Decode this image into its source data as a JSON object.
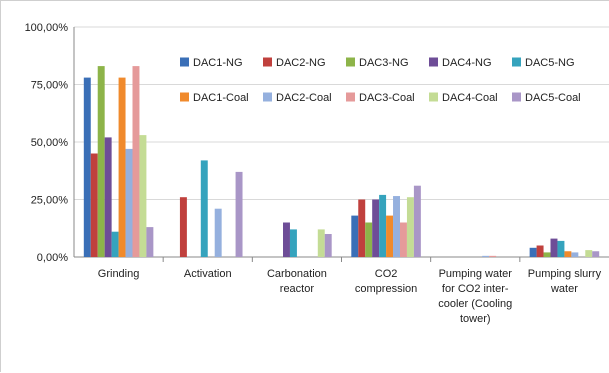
{
  "chart_data": {
    "type": "bar",
    "title": "",
    "xlabel": "",
    "ylabel": "",
    "ylim": [
      0,
      100
    ],
    "yticks": [
      "0,00%",
      "25,00%",
      "50,00%",
      "75,00%",
      "100,00%"
    ],
    "yticks_values": [
      0,
      25,
      50,
      75,
      100
    ],
    "grid": "horizontal",
    "legend_position": "top-right",
    "categories": [
      [
        "Grinding"
      ],
      [
        "Activation"
      ],
      [
        "Carbonation",
        "reactor"
      ],
      [
        "CO2",
        "compression"
      ],
      [
        "Pumping water",
        "for CO2 inter-",
        "cooler (Cooling",
        "tower)"
      ],
      [
        "Pumping slurry",
        "water"
      ]
    ],
    "series": [
      {
        "name": "DAC1-NG",
        "color": "#3a6fb7",
        "values": [
          78,
          0,
          0,
          18,
          0,
          4
        ]
      },
      {
        "name": "DAC2-NG",
        "color": "#c0403d",
        "values": [
          45,
          26,
          0,
          25,
          0,
          5
        ]
      },
      {
        "name": "DAC3-NG",
        "color": "#8db449",
        "values": [
          83,
          0,
          0,
          15,
          0,
          2
        ]
      },
      {
        "name": "DAC4-NG",
        "color": "#6e4d97",
        "values": [
          52,
          0,
          15,
          25,
          0,
          8
        ]
      },
      {
        "name": "DAC5-NG",
        "color": "#35a3bd",
        "values": [
          11,
          42,
          12,
          27,
          0,
          7
        ]
      },
      {
        "name": "DAC1-Coal",
        "color": "#f08a2c",
        "values": [
          78,
          0,
          0,
          18,
          0,
          2.5
        ]
      },
      {
        "name": "DAC2-Coal",
        "color": "#95b0de",
        "values": [
          47,
          21,
          0,
          26.5,
          0.5,
          2
        ]
      },
      {
        "name": "DAC3-Coal",
        "color": "#e59a9a",
        "values": [
          83,
          0,
          0,
          15,
          0.5,
          0
        ]
      },
      {
        "name": "DAC4-Coal",
        "color": "#c4dc95",
        "values": [
          53,
          0,
          12,
          26,
          0,
          3
        ]
      },
      {
        "name": "DAC5-Coal",
        "color": "#a996c7",
        "values": [
          13,
          37,
          10,
          31,
          0,
          2.5
        ]
      }
    ]
  }
}
